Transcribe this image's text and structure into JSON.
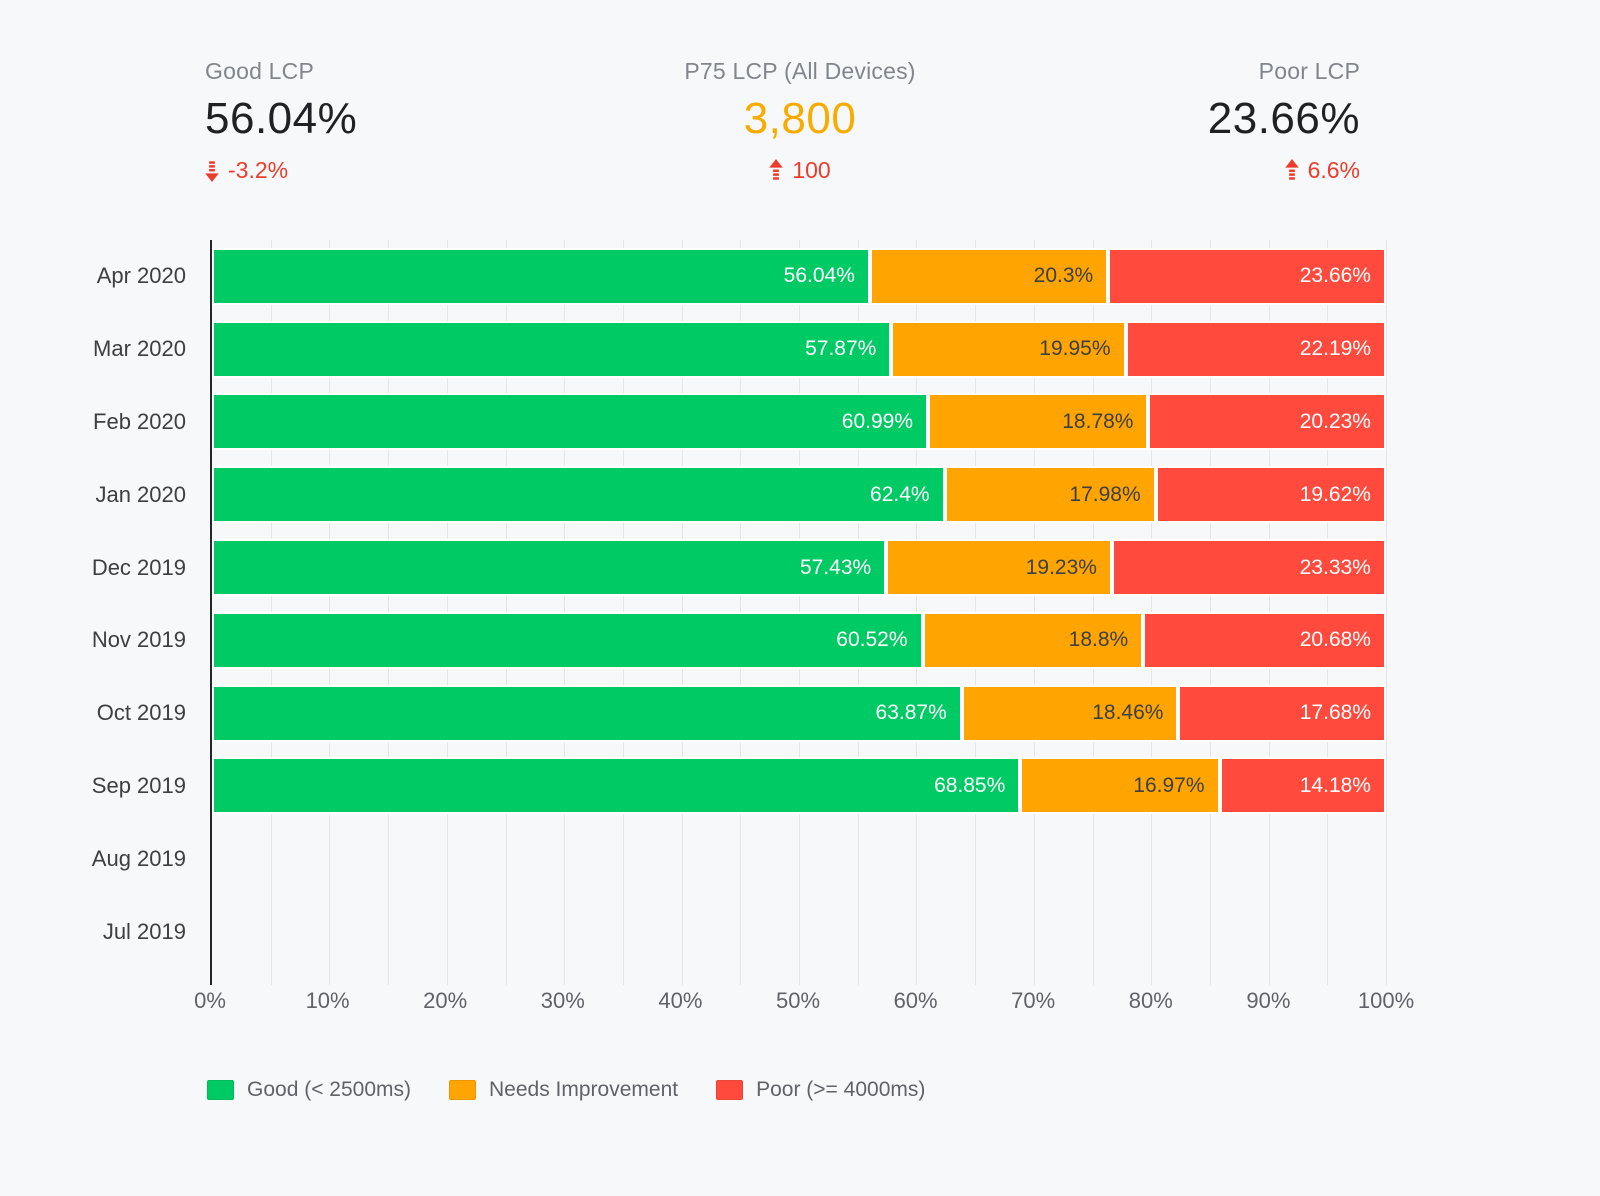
{
  "kpis": [
    {
      "label": "Good LCP",
      "value": "56.04%",
      "delta": "-3.2%",
      "trend": "down",
      "value_color": "#202124",
      "delta_color": "#ee3c2c"
    },
    {
      "label": "P75 LCP (All Devices)",
      "value": "3,800",
      "delta": "100",
      "trend": "up",
      "value_color": "#f9ab00",
      "delta_color": "#ee3c2c"
    },
    {
      "label": "Poor LCP",
      "value": "23.66%",
      "delta": "6.6%",
      "trend": "up",
      "value_color": "#202124",
      "delta_color": "#ee3c2c"
    }
  ],
  "chart_data": {
    "type": "bar",
    "orientation": "horizontal",
    "stacked": true,
    "stack_total": 100,
    "categories": [
      "Apr 2020",
      "Mar 2020",
      "Feb 2020",
      "Jan 2020",
      "Dec 2019",
      "Nov 2019",
      "Oct 2019",
      "Sep 2019",
      "Aug 2019",
      "Jul 2019"
    ],
    "series": [
      {
        "key": "good",
        "name": "Good (< 2500ms)",
        "color": "#00ca64",
        "text_style": "light-text",
        "values": [
          56.04,
          57.87,
          60.99,
          62.4,
          57.43,
          60.52,
          63.87,
          68.85,
          null,
          null
        ],
        "labels": [
          "56.04%",
          "57.87%",
          "60.99%",
          "62.4%",
          "57.43%",
          "60.52%",
          "63.87%",
          "68.85%",
          "",
          ""
        ]
      },
      {
        "key": "needs-improvement",
        "name": "Needs Improvement",
        "color": "#ffa400",
        "text_style": "dark-text",
        "values": [
          20.3,
          19.95,
          18.78,
          17.98,
          19.23,
          18.8,
          18.46,
          16.97,
          null,
          null
        ],
        "labels": [
          "20.3%",
          "19.95%",
          "18.78%",
          "17.98%",
          "19.23%",
          "18.8%",
          "18.46%",
          "16.97%",
          "",
          ""
        ]
      },
      {
        "key": "poor",
        "name": "Poor (>= 4000ms)",
        "color": "#ff4a3d",
        "text_style": "light-text",
        "values": [
          23.66,
          22.19,
          20.23,
          19.62,
          23.33,
          20.68,
          17.68,
          14.18,
          null,
          null
        ],
        "labels": [
          "23.66%",
          "22.19%",
          "20.23%",
          "19.62%",
          "23.33%",
          "20.68%",
          "17.68%",
          "14.18%",
          "",
          ""
        ]
      }
    ],
    "xlim": [
      0,
      100
    ],
    "x_ticks": [
      "0%",
      "10%",
      "20%",
      "30%",
      "40%",
      "50%",
      "60%",
      "70%",
      "80%",
      "90%",
      "100%"
    ],
    "gridline_step_pct": 5,
    "grid": true,
    "legend_position": "bottom",
    "value_labels": "inside-right"
  },
  "colors": {
    "page_bg": "#f7f8fa",
    "axis_line": "#24262a",
    "gridline": "#e5e6e9",
    "y_label": "#3c4043",
    "x_label": "#5f6368",
    "kpi_label": "#80868b"
  }
}
